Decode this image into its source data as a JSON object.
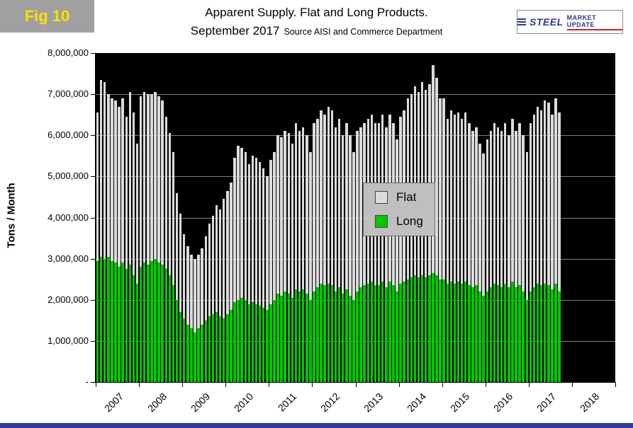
{
  "fig_label": "Fig 10",
  "header": {
    "title_line1": "Apparent Supply. Flat and Long Products.",
    "title_line2": "September 2017",
    "source": "Source AISI and Commerce Department"
  },
  "logo": {
    "steel": "STEEL",
    "rest": "MARKET UPDATE"
  },
  "y_axis": {
    "title": "Tons / Month",
    "tick_labels": [
      "8,000,000",
      "7,000,000",
      "6,000,000",
      "5,000,000",
      "4,000,000",
      "3,000,000",
      "2,000,000",
      "1,000,000",
      "-"
    ]
  },
  "x_axis": {
    "tick_labels": [
      "2007",
      "2008",
      "2009",
      "2010",
      "2011",
      "2012",
      "2013",
      "2014",
      "2015",
      "2016",
      "2017",
      "2018"
    ]
  },
  "legend": {
    "items": [
      {
        "label": "Flat",
        "color": "#dcdcdc"
      },
      {
        "label": "Long",
        "color": "#00c800"
      }
    ]
  },
  "colors": {
    "plot_bg": "#000000",
    "gridline": "#7f7f7f",
    "flat_bar": "#dcdcdc",
    "long_bar": "#00c800",
    "fig_badge_bg": "#a0a0a0",
    "fig_label_text": "#ffe100",
    "bottom_strip": "#2f3c96"
  },
  "chart_data": {
    "type": "bar",
    "stacked": true,
    "title": "Apparent Supply. Flat and Long Products. September 2017",
    "ylabel": "Tons / Month",
    "ylim": [
      0,
      8000000
    ],
    "y_tick_interval": 1000000,
    "grid": true,
    "legend_position": "center-right inside plot",
    "x_start": "2007-01",
    "x_end": "2017-09",
    "x_domain_slots": 144,
    "series": [
      {
        "name": "Long",
        "color": "#00c800",
        "values": [
          2950000,
          3050000,
          3000000,
          3050000,
          2950000,
          2900000,
          2800000,
          2900000,
          2750000,
          2850000,
          2600000,
          2400000,
          2800000,
          2900000,
          2850000,
          2950000,
          3000000,
          2900000,
          2850000,
          2750000,
          2600000,
          2350000,
          2000000,
          1700000,
          1550000,
          1400000,
          1300000,
          1200000,
          1300000,
          1400000,
          1500000,
          1600000,
          1650000,
          1700000,
          1600000,
          1550000,
          1650000,
          1750000,
          1950000,
          2000000,
          2050000,
          2000000,
          1900000,
          1950000,
          1900000,
          1850000,
          1800000,
          1750000,
          1900000,
          2000000,
          2150000,
          2100000,
          2200000,
          2150000,
          2050000,
          2250000,
          2200000,
          2250000,
          2150000,
          2000000,
          2200000,
          2300000,
          2400000,
          2350000,
          2400000,
          2350000,
          2200000,
          2300000,
          2150000,
          2250000,
          2100000,
          2000000,
          2200000,
          2300000,
          2350000,
          2400000,
          2450000,
          2350000,
          2350000,
          2450000,
          2300000,
          2450000,
          2350000,
          2200000,
          2400000,
          2450000,
          2500000,
          2550000,
          2600000,
          2550000,
          2600000,
          2550000,
          2600000,
          2650000,
          2600000,
          2500000,
          2500000,
          2400000,
          2450000,
          2400000,
          2450000,
          2400000,
          2450000,
          2350000,
          2300000,
          2350000,
          2200000,
          2100000,
          2200000,
          2300000,
          2400000,
          2350000,
          2300000,
          2400000,
          2300000,
          2450000,
          2300000,
          2350000,
          2200000,
          2000000,
          2200000,
          2300000,
          2400000,
          2350000,
          2400000,
          2350000,
          2250000,
          2400000,
          2200000
        ]
      },
      {
        "name": "Flat",
        "color": "#dcdcdc",
        "values": [
          3600000,
          4300000,
          4300000,
          3950000,
          3950000,
          3950000,
          3900000,
          4000000,
          3700000,
          4200000,
          3950000,
          3400000,
          4150000,
          4150000,
          4150000,
          4050000,
          4050000,
          4050000,
          4000000,
          3700000,
          3450000,
          3250000,
          2600000,
          2400000,
          2050000,
          1900000,
          1800000,
          1800000,
          1800000,
          1850000,
          2050000,
          2250000,
          2400000,
          2600000,
          2600000,
          2900000,
          3000000,
          3100000,
          3500000,
          3750000,
          3650000,
          3600000,
          3400000,
          3550000,
          3550000,
          3500000,
          3400000,
          3250000,
          3500000,
          3600000,
          3850000,
          3850000,
          3900000,
          3900000,
          3750000,
          4050000,
          3900000,
          3950000,
          3850000,
          3600000,
          4100000,
          4100000,
          4200000,
          4150000,
          4300000,
          4250000,
          4000000,
          4100000,
          3850000,
          4050000,
          3900000,
          3600000,
          3900000,
          3900000,
          3950000,
          4000000,
          4050000,
          3950000,
          3950000,
          4050000,
          3900000,
          4050000,
          3950000,
          3700000,
          4050000,
          4150000,
          4400000,
          4450000,
          4600000,
          4500000,
          4700000,
          4550000,
          4650000,
          5050000,
          4800000,
          4400000,
          4400000,
          4000000,
          4150000,
          4100000,
          4100000,
          4000000,
          4100000,
          3950000,
          3800000,
          3850000,
          3600000,
          3450000,
          3700000,
          3800000,
          3900000,
          3850000,
          3800000,
          3900000,
          3700000,
          3950000,
          3800000,
          3950000,
          3800000,
          3600000,
          4100000,
          4200000,
          4300000,
          4250000,
          4450000,
          4450000,
          4250000,
          4500000,
          4350000
        ]
      }
    ]
  }
}
